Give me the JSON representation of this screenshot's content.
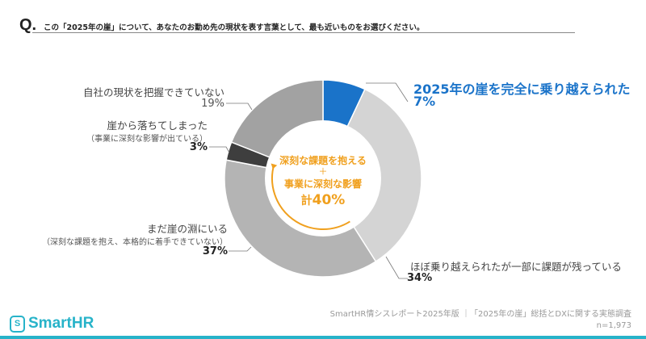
{
  "question": {
    "mark": "Q.",
    "text": "この「2025年の崖」について、あなたのお勤め先の現状を表す言葉として、最も近いものをお選びください。"
  },
  "chart_data": {
    "type": "pie",
    "donut": true,
    "slices": [
      {
        "label": "2025年の崖を完全に乗り越えられた",
        "value": 7,
        "pct_label": "7%",
        "color": "#1a73c9"
      },
      {
        "label": "ほぼ乗り越えられたが一部に課題が残っている",
        "value": 34,
        "pct_label": "34%",
        "color": "#d4d4d4"
      },
      {
        "label": "まだ崖の淵にいる",
        "sublabel": "（深刻な課題を抱え、本格的に着手できていない）",
        "value": 37,
        "pct_label": "37%",
        "color": "#b4b4b4"
      },
      {
        "label": "崖から落ちてしまった",
        "sublabel": "（事業に深刻な影響が出ている）",
        "value": 3,
        "pct_label": "3%",
        "color": "#3e3e3e"
      },
      {
        "label": "自社の現状を把握できていない",
        "value": 19,
        "pct_label": "19%",
        "color": "#a2a2a2"
      }
    ],
    "start": "top",
    "direction": "clockwise",
    "annotation": {
      "line1": "深刻な課題を抱える",
      "plus": "＋",
      "line2": "事業に深刻な影響",
      "total_prefix": "計",
      "total": "40%",
      "color": "#f0a01e"
    }
  },
  "footer": {
    "brand": "SmartHR",
    "brand_mark": "S",
    "source": "SmartHR情シスレポート2025年版 ｜「2025年の崖」総括とDXに関する実態調査",
    "n": "n=1,973",
    "accent": "#27b3c9"
  }
}
